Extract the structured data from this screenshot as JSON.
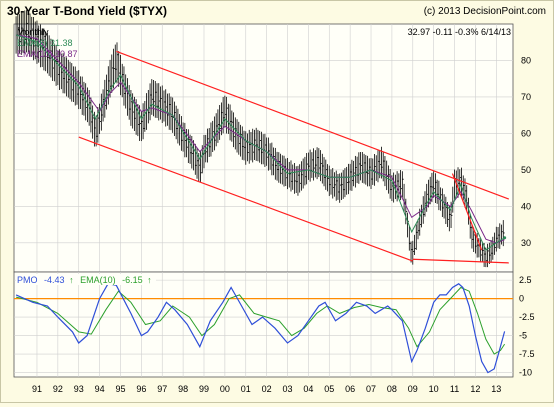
{
  "title": "30-Year T-Bond Yield ($TYX)",
  "copyright": "(c) 2013 DecisionPoint.com",
  "quote": "32.97  -0.11  -0.3%  6/14/13",
  "upper": {
    "period_label": "Monthly",
    "ema_fast_label": "EMA(6) 31.38",
    "ema_slow_label": "EMA(10) 30.87",
    "y_ticks": [
      30,
      40,
      50,
      60,
      70,
      80
    ],
    "ylim": [
      22,
      90
    ]
  },
  "lower": {
    "pmo_label": "PMO",
    "pmo_value": "-4.43",
    "pmo_arrow": "↑",
    "pmo_ema_label": "EMA(10)",
    "pmo_ema_value": "-6.15",
    "pmo_ema_arrow": "↑",
    "y_ticks": [
      "2.5",
      "0",
      "-2.5",
      "-5",
      "-7.5",
      "-10"
    ],
    "ylim": [
      -10.6,
      3.6
    ]
  },
  "x_labels": [
    "91",
    "92",
    "93",
    "94",
    "95",
    "96",
    "97",
    "98",
    "99",
    "00",
    "01",
    "02",
    "03",
    "04",
    "05",
    "06",
    "07",
    "08",
    "09",
    "10",
    "11",
    "12",
    "13"
  ],
  "colors": {
    "background": "#fdfbe3",
    "price": "#000000",
    "ema_fast": "#2e8b57",
    "ema_slow": "#7b2a8a",
    "trendline": "#ff2020",
    "pmo": "#2f4fd8",
    "pmo_signal": "#2ca02c",
    "zero_line": "#ff8c00",
    "grid": "#cfcfcf"
  },
  "chart_data": {
    "type": "line",
    "price_series": {
      "name": "$TYX",
      "points": [
        [
          1990.0,
          87
        ],
        [
          1990.5,
          88
        ],
        [
          1991.0,
          85
        ],
        [
          1991.5,
          82
        ],
        [
          1992.0,
          78
        ],
        [
          1992.5,
          75
        ],
        [
          1993.0,
          72
        ],
        [
          1993.5,
          67
        ],
        [
          1993.8,
          60
        ],
        [
          1994.0,
          64
        ],
        [
          1994.5,
          75
        ],
        [
          1994.8,
          80
        ],
        [
          1995.0,
          76
        ],
        [
          1995.5,
          67
        ],
        [
          1996.0,
          62
        ],
        [
          1996.5,
          70
        ],
        [
          1997.0,
          68
        ],
        [
          1997.5,
          65
        ],
        [
          1998.0,
          59
        ],
        [
          1998.5,
          54
        ],
        [
          1998.8,
          50
        ],
        [
          1999.0,
          55
        ],
        [
          1999.5,
          60
        ],
        [
          2000.0,
          66
        ],
        [
          2000.5,
          60
        ],
        [
          2001.0,
          56
        ],
        [
          2001.5,
          57
        ],
        [
          2002.0,
          55
        ],
        [
          2002.5,
          51
        ],
        [
          2003.0,
          49
        ],
        [
          2003.5,
          47
        ],
        [
          2004.0,
          51
        ],
        [
          2004.5,
          52
        ],
        [
          2005.0,
          47
        ],
        [
          2005.5,
          45
        ],
        [
          2006.0,
          48
        ],
        [
          2006.5,
          51
        ],
        [
          2007.0,
          49
        ],
        [
          2007.5,
          52
        ],
        [
          2008.0,
          45
        ],
        [
          2008.5,
          46
        ],
        [
          2008.95,
          26
        ],
        [
          2009.3,
          35
        ],
        [
          2009.7,
          43
        ],
        [
          2010.0,
          46
        ],
        [
          2010.5,
          40
        ],
        [
          2010.8,
          36
        ],
        [
          2011.0,
          46
        ],
        [
          2011.3,
          47
        ],
        [
          2011.6,
          42
        ],
        [
          2011.8,
          32
        ],
        [
          2012.0,
          30
        ],
        [
          2012.5,
          26
        ],
        [
          2012.8,
          28
        ],
        [
          2013.0,
          31
        ],
        [
          2013.4,
          33
        ]
      ],
      "ema_fast": [
        [
          1990.0,
          87
        ],
        [
          1991.0,
          85
        ],
        [
          1992.0,
          79
        ],
        [
          1993.0,
          73
        ],
        [
          1993.8,
          64
        ],
        [
          1994.5,
          72
        ],
        [
          1995.0,
          76
        ],
        [
          1996.0,
          64
        ],
        [
          1996.5,
          68
        ],
        [
          1997.5,
          65
        ],
        [
          1998.8,
          53
        ],
        [
          2000.0,
          64
        ],
        [
          2001.0,
          58
        ],
        [
          2002.0,
          55
        ],
        [
          2003.0,
          49
        ],
        [
          2004.0,
          50
        ],
        [
          2005.0,
          48
        ],
        [
          2006.0,
          48
        ],
        [
          2007.0,
          50
        ],
        [
          2008.0,
          47
        ],
        [
          2008.95,
          33
        ],
        [
          2009.7,
          41
        ],
        [
          2010.0,
          44
        ],
        [
          2010.8,
          39
        ],
        [
          2011.3,
          46
        ],
        [
          2011.8,
          37
        ],
        [
          2012.5,
          28
        ],
        [
          2013.0,
          30
        ],
        [
          2013.4,
          31.38
        ]
      ],
      "ema_slow": [
        [
          1990.0,
          87
        ],
        [
          1991.0,
          86
        ],
        [
          1992.0,
          80
        ],
        [
          1993.0,
          74
        ],
        [
          1994.0,
          66
        ],
        [
          1994.5,
          71
        ],
        [
          1995.0,
          74
        ],
        [
          1996.0,
          66
        ],
        [
          1996.5,
          67
        ],
        [
          1997.5,
          65
        ],
        [
          1998.8,
          55
        ],
        [
          2000.0,
          62
        ],
        [
          2001.0,
          58
        ],
        [
          2002.0,
          55
        ],
        [
          2003.0,
          50
        ],
        [
          2004.0,
          50
        ],
        [
          2005.0,
          48
        ],
        [
          2006.0,
          48
        ],
        [
          2007.0,
          50
        ],
        [
          2008.0,
          48
        ],
        [
          2008.95,
          37
        ],
        [
          2009.7,
          40
        ],
        [
          2010.0,
          43
        ],
        [
          2010.8,
          40
        ],
        [
          2011.3,
          44
        ],
        [
          2011.8,
          39
        ],
        [
          2012.5,
          31
        ],
        [
          2013.0,
          30
        ],
        [
          2013.4,
          30.87
        ]
      ]
    },
    "trendlines": [
      {
        "from": [
          1994.8,
          82.5
        ],
        "to": [
          2013.6,
          42
        ]
      },
      {
        "from": [
          1993.0,
          59
        ],
        "to": [
          2009.0,
          25
        ]
      },
      {
        "from": [
          2010.9,
          49
        ],
        "to": [
          2012.3,
          28
        ]
      },
      {
        "from": [
          2009.0,
          25.5
        ],
        "to": [
          2013.6,
          24.5
        ]
      }
    ],
    "pmo_series": {
      "name": "PMO",
      "points": [
        [
          1990.0,
          0.5
        ],
        [
          1990.8,
          -0.5
        ],
        [
          1991.5,
          -1.0
        ],
        [
          1992.0,
          -2.5
        ],
        [
          1992.7,
          -4.5
        ],
        [
          1993.0,
          -6.0
        ],
        [
          1993.4,
          -5.0
        ],
        [
          1994.0,
          0.0
        ],
        [
          1994.4,
          2.0
        ],
        [
          1994.8,
          1.8
        ],
        [
          1995.5,
          -2.0
        ],
        [
          1996.0,
          -5.0
        ],
        [
          1996.3,
          -4.5
        ],
        [
          1996.8,
          -2.5
        ],
        [
          1997.2,
          -0.5
        ],
        [
          1997.6,
          -1.5
        ],
        [
          1998.2,
          -3.5
        ],
        [
          1998.8,
          -6.5
        ],
        [
          1999.3,
          -3.0
        ],
        [
          1999.9,
          -0.5
        ],
        [
          2000.3,
          1.5
        ],
        [
          2000.8,
          -1.0
        ],
        [
          2001.3,
          -3.5
        ],
        [
          2001.8,
          -2.5
        ],
        [
          2002.4,
          -4.0
        ],
        [
          2003.0,
          -6.0
        ],
        [
          2003.5,
          -5.0
        ],
        [
          2004.0,
          -3.0
        ],
        [
          2004.5,
          -1.0
        ],
        [
          2004.8,
          -0.5
        ],
        [
          2005.3,
          -3.0
        ],
        [
          2005.8,
          -2.0
        ],
        [
          2006.3,
          -0.5
        ],
        [
          2006.8,
          -1.0
        ],
        [
          2007.2,
          -2.0
        ],
        [
          2007.8,
          -1.0
        ],
        [
          2008.0,
          -1.5
        ],
        [
          2008.5,
          -3.0
        ],
        [
          2008.95,
          -8.5
        ],
        [
          2009.2,
          -7.0
        ],
        [
          2009.6,
          -4.0
        ],
        [
          2010.0,
          -0.5
        ],
        [
          2010.3,
          0.5
        ],
        [
          2010.6,
          0.5
        ],
        [
          2010.9,
          1.5
        ],
        [
          2011.2,
          2.0
        ],
        [
          2011.4,
          1.5
        ],
        [
          2011.7,
          -1.0
        ],
        [
          2012.0,
          -5.0
        ],
        [
          2012.3,
          -8.5
        ],
        [
          2012.6,
          -10.0
        ],
        [
          2012.9,
          -9.5
        ],
        [
          2013.1,
          -7.5
        ],
        [
          2013.4,
          -4.43
        ]
      ],
      "signal": [
        [
          1990.0,
          0.2
        ],
        [
          1991.0,
          -0.5
        ],
        [
          1992.0,
          -2.0
        ],
        [
          1993.0,
          -4.5
        ],
        [
          1993.6,
          -4.8
        ],
        [
          1994.3,
          -1.5
        ],
        [
          1994.9,
          1.0
        ],
        [
          1995.5,
          -0.5
        ],
        [
          1996.2,
          -3.5
        ],
        [
          1996.9,
          -3.0
        ],
        [
          1997.5,
          -1.0
        ],
        [
          1998.3,
          -2.5
        ],
        [
          1998.9,
          -5.0
        ],
        [
          1999.5,
          -3.5
        ],
        [
          2000.2,
          0.0
        ],
        [
          2000.7,
          0.5
        ],
        [
          2001.4,
          -2.0
        ],
        [
          2002.0,
          -2.5
        ],
        [
          2002.6,
          -3.0
        ],
        [
          2003.2,
          -5.0
        ],
        [
          2003.8,
          -4.0
        ],
        [
          2004.4,
          -2.0
        ],
        [
          2004.9,
          -1.0
        ],
        [
          2005.5,
          -2.0
        ],
        [
          2006.2,
          -1.2
        ],
        [
          2006.9,
          -0.8
        ],
        [
          2007.5,
          -1.2
        ],
        [
          2008.2,
          -1.5
        ],
        [
          2008.8,
          -4.0
        ],
        [
          2009.2,
          -6.5
        ],
        [
          2009.8,
          -4.5
        ],
        [
          2010.3,
          -1.5
        ],
        [
          2010.8,
          0.0
        ],
        [
          2011.3,
          1.5
        ],
        [
          2011.7,
          1.0
        ],
        [
          2012.1,
          -2.0
        ],
        [
          2012.5,
          -5.5
        ],
        [
          2012.9,
          -7.5
        ],
        [
          2013.2,
          -7.0
        ],
        [
          2013.4,
          -6.15
        ]
      ]
    },
    "x_range": [
      1989.9,
      2013.8
    ]
  }
}
